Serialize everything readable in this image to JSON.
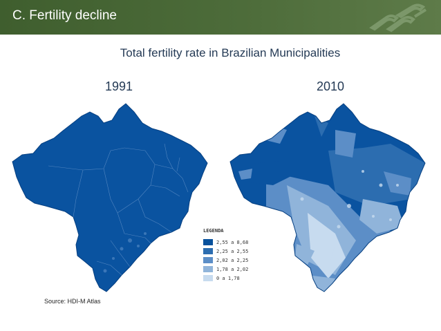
{
  "header": {
    "title": "C. Fertility decline"
  },
  "slide": {
    "title": "Total fertility rate in Brazilian Municipalities"
  },
  "maps": [
    {
      "year": "1991"
    },
    {
      "year": "2010"
    }
  ],
  "legend": {
    "title": "LEGENDA",
    "items": [
      {
        "label": "2,55 a 8,68",
        "color": "#08519c"
      },
      {
        "label": "2,25 a 2,55",
        "color": "#2c6db0"
      },
      {
        "label": "2,02 a 2,25",
        "color": "#5c8ec7"
      },
      {
        "label": "1,78 a 2,02",
        "color": "#90b4da"
      },
      {
        "label": "0 a 1,78",
        "color": "#c7dbef"
      }
    ]
  },
  "source": "Source: HDI-M Atlas",
  "colors": {
    "header": "#4d6c3a",
    "title_text": "#243a55"
  }
}
